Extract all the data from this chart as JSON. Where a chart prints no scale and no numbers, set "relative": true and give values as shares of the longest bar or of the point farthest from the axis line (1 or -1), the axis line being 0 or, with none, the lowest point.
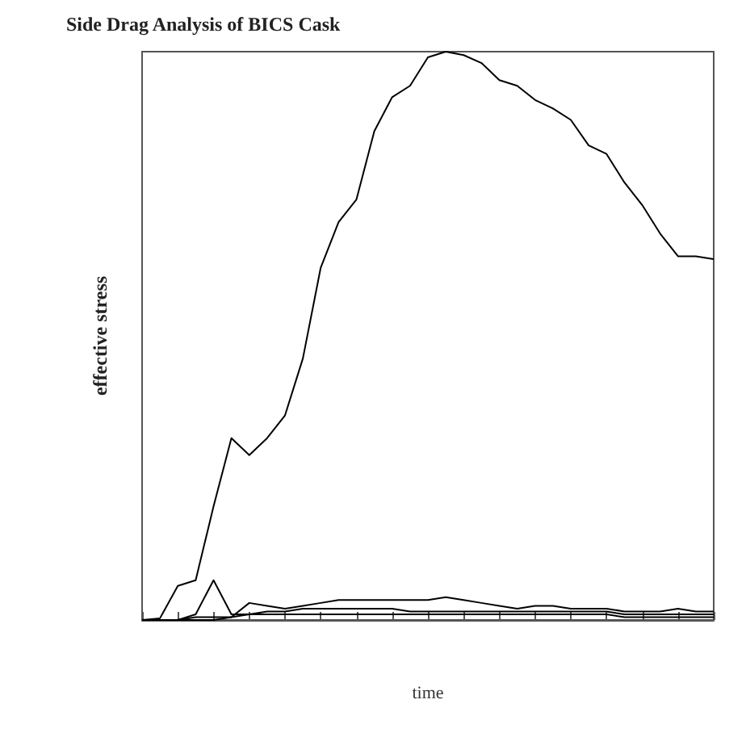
{
  "chart_data": {
    "type": "line",
    "title": "Side Drag Analysis of BICS Cask",
    "xlabel": "time",
    "ylabel": "effective stress",
    "relative": true,
    "grid": false,
    "marker": "none",
    "line_style": "solid",
    "categories": [
      null,
      null,
      null,
      null,
      null,
      null,
      null,
      null,
      null,
      null,
      null,
      null,
      null,
      null,
      null,
      null,
      null,
      null,
      null,
      null,
      null,
      null,
      null,
      null,
      null,
      null,
      null,
      null,
      null,
      null,
      null,
      null,
      null
    ],
    "series": [
      {
        "color": "#000000",
        "values": [
          0,
          0.003,
          0.06,
          0.07,
          0.2,
          0.32,
          0.29,
          0.32,
          0.36,
          0.46,
          0.62,
          0.7,
          0.74,
          0.86,
          0.92,
          0.94,
          0.99,
          1,
          0.994,
          0.98,
          0.95,
          0.94,
          0.915,
          0.9,
          0.88,
          0.835,
          0.82,
          0.77,
          0.73,
          0.68,
          0.64,
          0.64,
          0.635
        ]
      },
      {
        "color": "#000000",
        "values": [
          0,
          0,
          0,
          0.01,
          0.07,
          0.01,
          0.01,
          0.015,
          0.015,
          0.02,
          0.02,
          0.02,
          0.02,
          0.02,
          0.02,
          0.015,
          0.015,
          0.015,
          0.015,
          0.015,
          0.015,
          0.015,
          0.015,
          0.015,
          0.015,
          0.015,
          0.015,
          0.01,
          0.01,
          0.01,
          0.01,
          0.01,
          0.01
        ]
      },
      {
        "color": "#000000",
        "values": [
          0,
          0,
          0,
          0,
          0,
          0.005,
          0.03,
          0.025,
          0.02,
          0.025,
          0.03,
          0.035,
          0.035,
          0.035,
          0.035,
          0.035,
          0.035,
          0.04,
          0.035,
          0.03,
          0.025,
          0.02,
          0.025,
          0.025,
          0.02,
          0.02,
          0.02,
          0.015,
          0.015,
          0.015,
          0.02,
          0.015,
          0.015
        ]
      },
      {
        "color": "#000000",
        "values": [
          0,
          0,
          0,
          0.005,
          0.005,
          0.005,
          0.01,
          0.01,
          0.01,
          0.01,
          0.01,
          0.01,
          0.01,
          0.01,
          0.01,
          0.01,
          0.01,
          0.01,
          0.01,
          0.01,
          0.01,
          0.01,
          0.01,
          0.01,
          0.01,
          0.01,
          0.01,
          0.005,
          0.005,
          0.005,
          0.005,
          0.005,
          0.005
        ]
      }
    ]
  }
}
